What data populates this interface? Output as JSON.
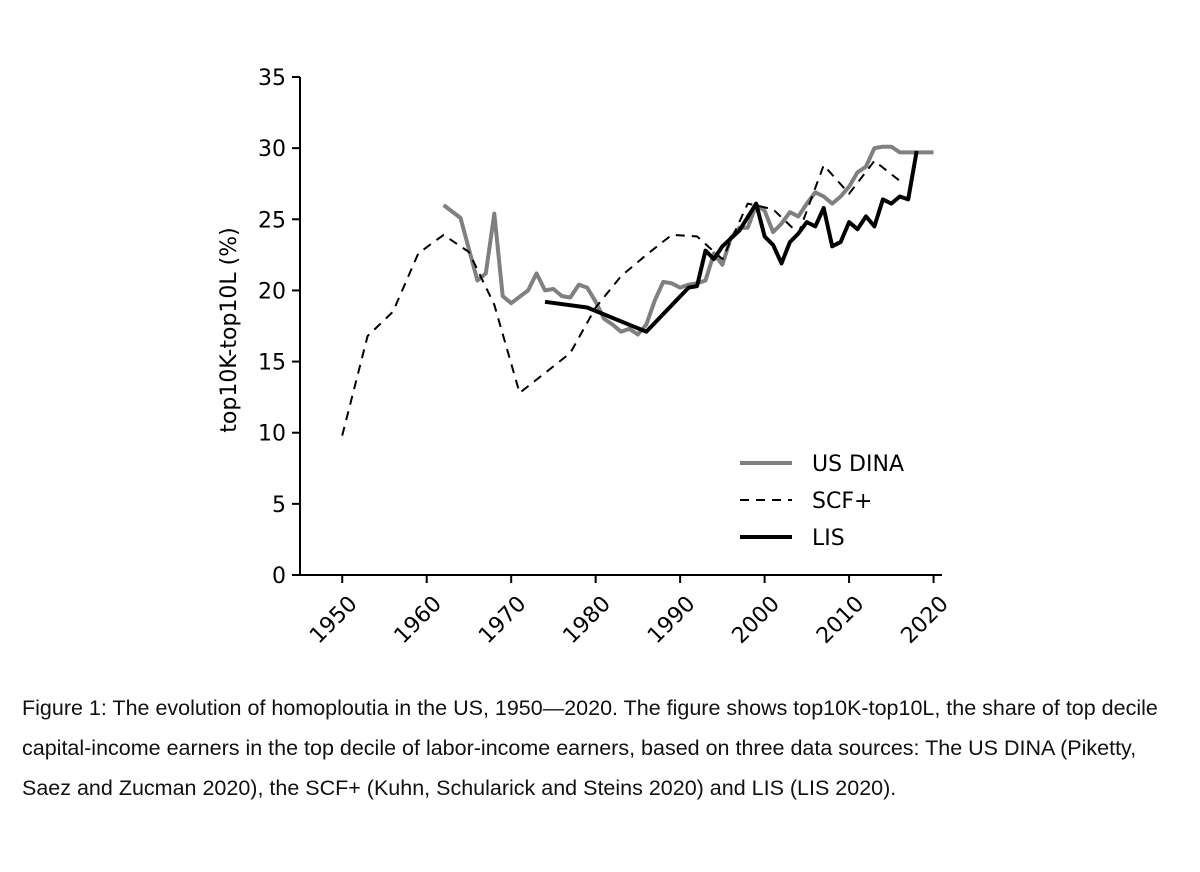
{
  "chart_data": {
    "type": "line",
    "ylabel": "top10K-top10L (%)",
    "xlabel": "",
    "xlim": [
      1945,
      2021
    ],
    "ylim": [
      0,
      35
    ],
    "xticks": [
      1950,
      1960,
      1970,
      1980,
      1990,
      2000,
      2010,
      2020
    ],
    "yticks": [
      0,
      5,
      10,
      15,
      20,
      25,
      30,
      35
    ],
    "grid": false,
    "legend_position": "lower-right",
    "series": [
      {
        "name": "US DINA",
        "color": "#808080",
        "style": "solid",
        "x": [
          1962,
          1964,
          1966,
          1967,
          1968,
          1969,
          1970,
          1972,
          1973,
          1974,
          1975,
          1976,
          1977,
          1978,
          1979,
          1980,
          1981,
          1982,
          1983,
          1984,
          1985,
          1986,
          1987,
          1988,
          1989,
          1990,
          1991,
          1992,
          1993,
          1994,
          1995,
          1996,
          1997,
          1998,
          1999,
          2000,
          2001,
          2002,
          2003,
          2004,
          2005,
          2006,
          2007,
          2008,
          2009,
          2010,
          2011,
          2012,
          2013,
          2014,
          2015,
          2016,
          2017,
          2018,
          2019,
          2020
        ],
        "y": [
          26.0,
          25.1,
          20.7,
          21.2,
          25.4,
          19.6,
          19.1,
          20.0,
          21.2,
          20.0,
          20.1,
          19.6,
          19.5,
          20.4,
          20.2,
          19.2,
          18.0,
          17.6,
          17.1,
          17.3,
          16.9,
          17.6,
          19.3,
          20.6,
          20.5,
          20.2,
          20.4,
          20.5,
          20.7,
          22.6,
          21.8,
          23.7,
          24.4,
          24.4,
          26.0,
          25.6,
          24.1,
          24.7,
          25.5,
          25.2,
          26.1,
          26.9,
          26.6,
          26.1,
          26.6,
          27.3,
          28.3,
          28.7,
          30.0,
          30.1,
          30.1,
          29.7,
          29.7,
          29.7,
          29.7,
          29.7
        ]
      },
      {
        "name": "SCF+",
        "color": "#000000",
        "style": "dashed",
        "x": [
          1950,
          1953,
          1956,
          1959,
          1962,
          1965,
          1968,
          1971,
          1974,
          1977,
          1980,
          1983,
          1986,
          1989,
          1992,
          1995,
          1998,
          2001,
          2004,
          2007,
          2010,
          2013,
          2016
        ],
        "y": [
          9.8,
          16.8,
          18.5,
          22.6,
          23.9,
          22.7,
          19.0,
          12.8,
          14.2,
          15.6,
          18.8,
          21.0,
          22.5,
          23.9,
          23.8,
          22.2,
          26.1,
          25.7,
          24.0,
          28.8,
          26.8,
          29.1,
          27.7
        ]
      },
      {
        "name": "LIS",
        "color": "#000000",
        "style": "solid",
        "x": [
          1974,
          1979,
          1986,
          1991,
          1992,
          1993,
          1994,
          1995,
          1997,
          1999,
          2000,
          2001,
          2002,
          2003,
          2004,
          2005,
          2006,
          2007,
          2008,
          2009,
          2010,
          2011,
          2012,
          2013,
          2014,
          2015,
          2016,
          2017,
          2018
        ],
        "y": [
          19.2,
          18.8,
          17.1,
          20.2,
          20.3,
          22.8,
          22.2,
          23.1,
          24.2,
          26.1,
          23.8,
          23.2,
          21.9,
          23.4,
          24.0,
          24.8,
          24.5,
          25.8,
          23.1,
          23.4,
          24.8,
          24.3,
          25.2,
          24.5,
          26.4,
          26.1,
          26.6,
          26.4,
          29.8
        ]
      }
    ]
  },
  "caption": "Figure 1: The evolution of homoploutia in the US, 1950—2020. The figure shows top10K-top10L, the share of top decile capital-income earners in the top decile of labor-income earners, based on three data sources: The US DINA (Piketty, Saez and Zucman 2020), the SCF+ (Kuhn, Schularick and Steins 2020) and LIS (LIS 2020)."
}
